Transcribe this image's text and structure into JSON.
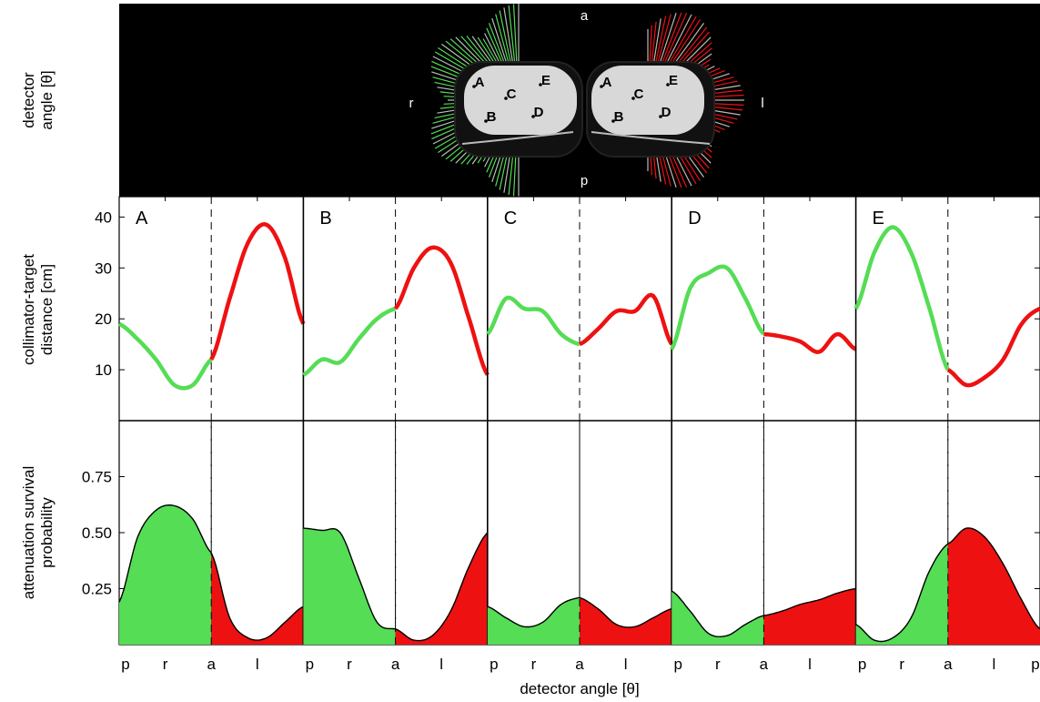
{
  "figure": {
    "top_ylabel": [
      "detector",
      "angle [θ]"
    ],
    "mid_ylabel": [
      "collimator-target",
      "distance [cm]"
    ],
    "bot_ylabel": [
      "attenuation survival",
      "probability"
    ],
    "xlabel": "detector angle [θ]",
    "x_tick_labels": [
      "p",
      "r",
      "a",
      "l"
    ],
    "x_tick_last": "p",
    "orbit_labels": {
      "anterior": "a",
      "posterior": "p",
      "right": "r",
      "left": "l"
    },
    "target_labels": [
      "A",
      "B",
      "C",
      "D",
      "E"
    ],
    "colors": {
      "right_side": "#55dd55",
      "left_side": "#ee1111",
      "frame": "#000000"
    }
  },
  "chart_data": [
    {
      "type": "line",
      "name": "collimator-target distance",
      "ylabel": "collimator-target distance [cm]",
      "ylim": [
        0,
        44
      ],
      "yticks": [
        10,
        20,
        30,
        40
      ],
      "x_positions": [
        "p",
        "",
        "r",
        "",
        "a",
        "",
        "l",
        "",
        "p"
      ],
      "panels": [
        {
          "label": "A",
          "green": [
            19,
            16,
            12,
            7,
            7,
            12
          ],
          "red": [
            12,
            24,
            35,
            38.5,
            32,
            19
          ]
        },
        {
          "label": "B",
          "green": [
            9,
            12,
            11.5,
            16,
            20,
            22
          ],
          "red": [
            22,
            30,
            34,
            31,
            20,
            9
          ]
        },
        {
          "label": "C",
          "green": [
            17,
            24,
            22,
            21.5,
            17,
            15
          ],
          "red": [
            15,
            18,
            21.5,
            21.5,
            24.5,
            15
          ]
        },
        {
          "label": "D",
          "green": [
            14,
            26,
            29,
            30,
            24,
            17
          ],
          "red": [
            17,
            16.5,
            15.5,
            13.5,
            17,
            14
          ]
        },
        {
          "label": "E",
          "green": [
            22,
            33,
            38,
            33,
            22,
            10
          ],
          "red": [
            10,
            7,
            8.5,
            12,
            19,
            22
          ]
        }
      ]
    },
    {
      "type": "area",
      "name": "attenuation survival probability",
      "ylabel": "attenuation survival probability",
      "ylim": [
        0,
        1
      ],
      "yticks": [
        0.25,
        0.5,
        0.75
      ],
      "ytick_labels": [
        "0.25",
        "0.50",
        "0.75"
      ],
      "panels": [
        {
          "label": "A",
          "green": [
            0.19,
            0.48,
            0.6,
            0.62,
            0.56,
            0.41
          ],
          "red": [
            0.41,
            0.12,
            0.03,
            0.03,
            0.1,
            0.17
          ]
        },
        {
          "label": "B",
          "green": [
            0.52,
            0.51,
            0.5,
            0.3,
            0.1,
            0.07
          ],
          "red": [
            0.07,
            0.02,
            0.04,
            0.15,
            0.35,
            0.5
          ]
        },
        {
          "label": "C",
          "green": [
            0.17,
            0.12,
            0.08,
            0.1,
            0.18,
            0.21
          ],
          "red": [
            0.21,
            0.16,
            0.09,
            0.08,
            0.12,
            0.16
          ]
        },
        {
          "label": "D",
          "green": [
            0.24,
            0.15,
            0.05,
            0.04,
            0.09,
            0.13
          ],
          "red": [
            0.13,
            0.15,
            0.18,
            0.2,
            0.23,
            0.25
          ]
        },
        {
          "label": "E",
          "green": [
            0.09,
            0.02,
            0.03,
            0.12,
            0.33,
            0.45
          ],
          "red": [
            0.45,
            0.52,
            0.48,
            0.36,
            0.2,
            0.07
          ]
        }
      ]
    }
  ]
}
